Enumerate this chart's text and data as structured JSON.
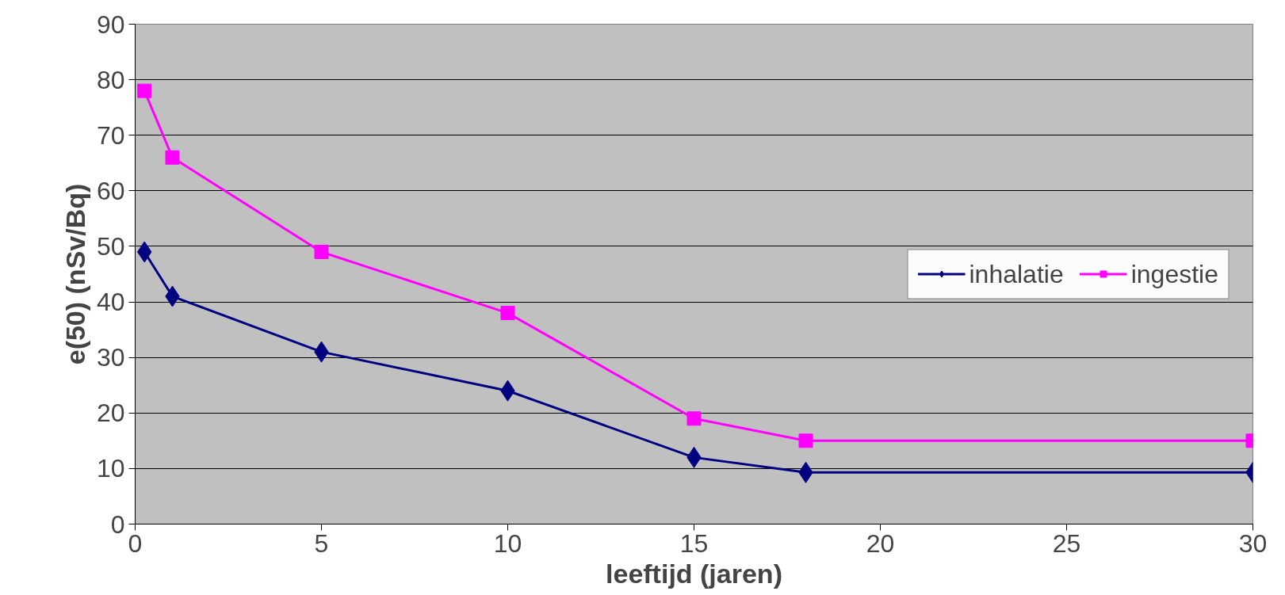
{
  "chart_data": {
    "type": "line",
    "xlabel": "leeftijd (jaren)",
    "ylabel": "e(50) (nSv/Bq)",
    "x": [
      0.25,
      1,
      5,
      10,
      15,
      18,
      30
    ],
    "series": [
      {
        "name": "inhalatie",
        "color": "#000080",
        "marker": "diamond",
        "values": [
          49,
          41,
          31,
          24,
          12,
          9.3,
          9.3
        ]
      },
      {
        "name": "ingestie",
        "color": "#ff00ff",
        "marker": "square",
        "values": [
          78,
          66,
          49,
          38,
          19,
          15,
          15
        ]
      }
    ],
    "xlim": [
      0,
      30
    ],
    "xticks": [
      0,
      5,
      10,
      15,
      20,
      25,
      30
    ],
    "ylim": [
      0,
      90
    ],
    "yticks": [
      0,
      10,
      20,
      30,
      40,
      50,
      60,
      70,
      80,
      90
    ],
    "grid": "y",
    "legend": "right",
    "line_style": "solid"
  }
}
